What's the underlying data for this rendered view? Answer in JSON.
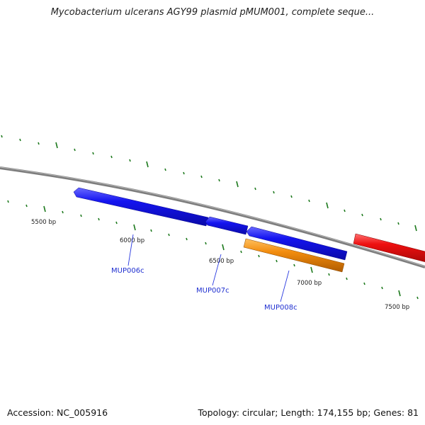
{
  "title": "Mycobacterium ulcerans AGY99 plasmid pMUM001, complete seque...",
  "footer": {
    "accession": "Accession: NC_005916",
    "summary": "Topology: circular; Length: 174,155 bp; Genes: 81"
  },
  "colors": {
    "backbone": "#7d7d7d",
    "tick": "#1e7a1e",
    "forward_gene": "#e8141a",
    "reverse_gene": "#1212e0",
    "other_feature": "#f08a0a",
    "label": "#1f2fd0"
  },
  "scale_labels": [
    {
      "text": "5500 bp"
    },
    {
      "text": "6000 bp"
    },
    {
      "text": "6500 bp"
    },
    {
      "text": "7000 bp"
    },
    {
      "text": "7500 bp"
    }
  ],
  "genes": [
    {
      "name": "MUP006c",
      "strand": "reverse"
    },
    {
      "name": "MUP007c",
      "strand": "reverse"
    },
    {
      "name": "MUP008c",
      "strand": "reverse"
    }
  ]
}
